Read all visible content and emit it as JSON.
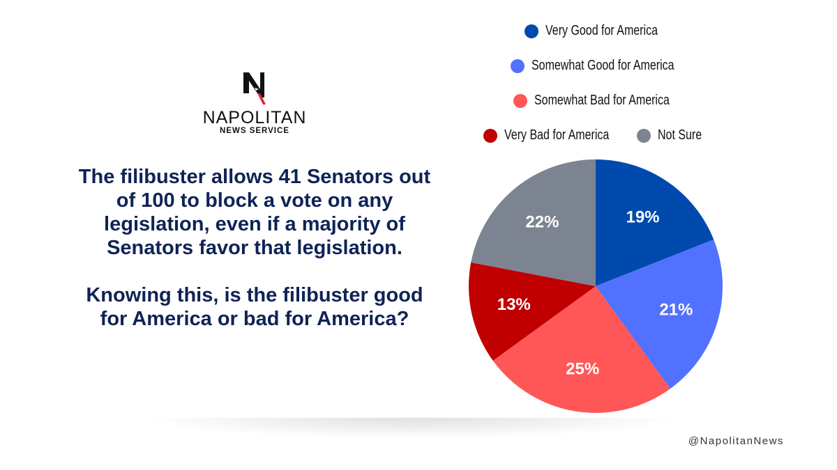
{
  "logo": {
    "name": "NAPOLITAN",
    "sub": "NEWS SERVICE"
  },
  "question": {
    "p1": "The filibuster allows 41 Senators out of 100 to block a vote on any legislation, even if a majority of Senators favor that legislation.",
    "p2": "Knowing this, is the filibuster good for America or bad for America?"
  },
  "handle": "@NapolitanNews",
  "chart_data": {
    "type": "pie",
    "title": "",
    "legend_placement": "top",
    "categories": [
      "Very Good for America",
      "Somewhat Good for America",
      "Somewhat Bad for America",
      "Very Bad for America",
      "Not Sure"
    ],
    "values": [
      19,
      21,
      25,
      13,
      22
    ],
    "labels": [
      "19%",
      "21%",
      "25%",
      "13%",
      "22%"
    ],
    "colors": [
      "#004aad",
      "#5271ff",
      "#ff5757",
      "#c00000",
      "#7d8491"
    ]
  }
}
